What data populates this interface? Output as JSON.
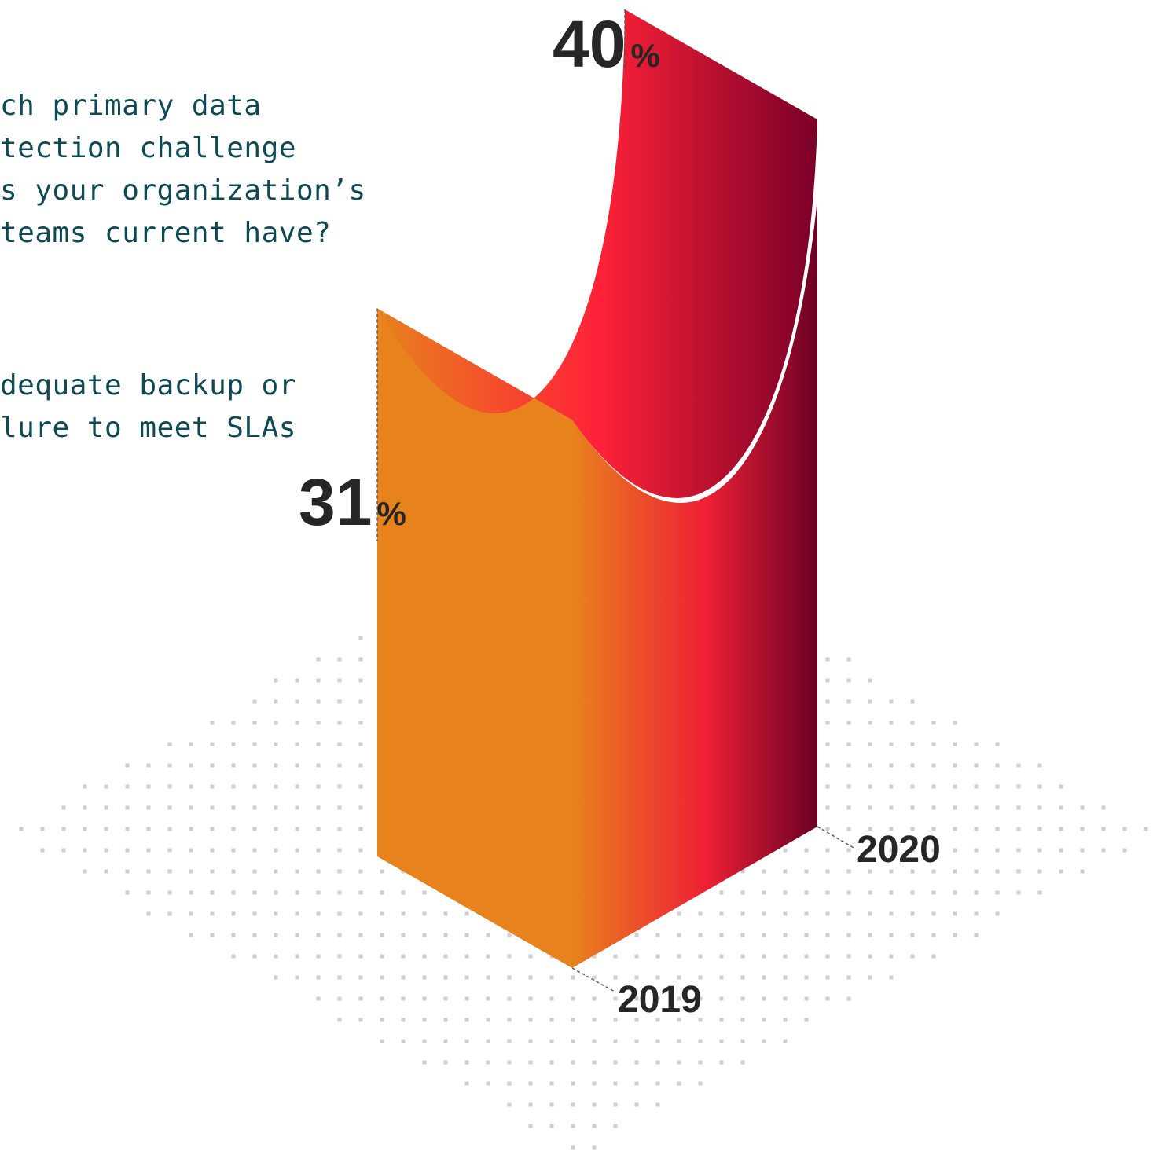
{
  "question_lines": [
    "ch primary data",
    "tection challenge",
    "s your organization’s",
    "teams current have?"
  ],
  "answer_lines": [
    "dequate backup or",
    "lure to meet SLAs"
  ],
  "chart_data": {
    "type": "bar",
    "categories": [
      "2019",
      "2020"
    ],
    "values": [
      31,
      40
    ],
    "value_suffix": "%",
    "title": "",
    "xlabel": "",
    "ylabel": "",
    "ylim": [
      0,
      40
    ]
  },
  "colors": {
    "text_teal": "#0e4a55",
    "label_dark": "#262626",
    "orange": "#e8821d",
    "red": "#ff2238",
    "dark_red": "#7a0028",
    "dots": "#cfcfcf"
  }
}
